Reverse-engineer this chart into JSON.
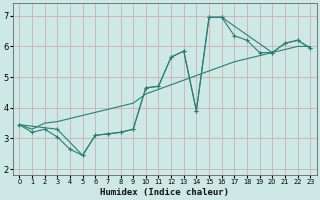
{
  "xlabel": "Humidex (Indice chaleur)",
  "bg_color": "#cde8e5",
  "grid_color": "#b0d4d0",
  "line_color": "#2e7d72",
  "xlim": [
    -0.5,
    23.5
  ],
  "ylim": [
    1.8,
    7.4
  ],
  "yticks": [
    2,
    3,
    4,
    5,
    6,
    7
  ],
  "xtick_labels": [
    "0",
    "1",
    "2",
    "3",
    "4",
    "5",
    "6",
    "7",
    "8",
    "9",
    "10",
    "11",
    "12",
    "13",
    "14",
    "15",
    "16",
    "17",
    "18",
    "19",
    "20",
    "21",
    "22",
    "23"
  ],
  "line1_x": [
    0,
    1,
    2,
    3,
    4,
    5,
    6,
    7,
    8,
    9,
    10,
    11,
    12,
    13,
    14,
    15,
    16,
    17,
    18,
    19,
    20,
    21,
    22,
    23
  ],
  "line1_y": [
    3.45,
    3.2,
    3.3,
    3.05,
    2.65,
    2.45,
    3.1,
    3.15,
    3.2,
    3.3,
    4.65,
    4.7,
    5.65,
    5.85,
    3.9,
    6.95,
    6.95,
    6.35,
    6.2,
    5.8,
    5.8,
    6.1,
    6.2,
    5.95
  ],
  "line2_x": [
    0,
    1,
    2,
    3,
    4,
    5,
    6,
    7,
    8,
    9,
    10,
    11,
    12,
    13,
    14,
    15,
    16,
    17,
    18,
    19,
    20,
    21,
    22,
    23
  ],
  "line2_y": [
    3.45,
    3.3,
    3.5,
    3.55,
    3.65,
    3.75,
    3.85,
    3.95,
    4.05,
    4.15,
    4.45,
    4.6,
    4.75,
    4.9,
    5.05,
    5.2,
    5.35,
    5.5,
    5.6,
    5.7,
    5.8,
    5.9,
    6.0,
    6.0
  ],
  "line3_x": [
    0,
    3,
    5,
    6,
    7,
    8,
    9,
    10,
    11,
    12,
    13,
    14,
    15,
    16,
    20,
    21,
    22,
    23
  ],
  "line3_y": [
    3.45,
    3.3,
    2.45,
    3.1,
    3.15,
    3.2,
    3.3,
    4.65,
    4.7,
    5.65,
    5.85,
    3.9,
    6.95,
    6.95,
    5.8,
    6.1,
    6.2,
    5.95
  ]
}
